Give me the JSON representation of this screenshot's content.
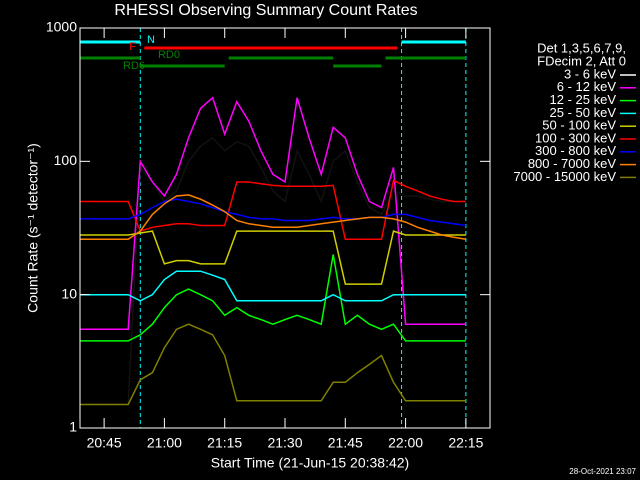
{
  "chart_data": {
    "type": "line",
    "title": "RHESSI Observing Summary Count Rates",
    "x_label": "Start Time (21-Jun-15 20:38:42)",
    "y_label": "Count Rate (s⁻¹ detector⁻¹)",
    "legend_title": [
      "Det 1,3,5,6,7,9,",
      "FDecim 2, Att 0"
    ],
    "timestamp": "28-Oct-2021 23:07",
    "log_y": true,
    "xlim": [
      "20:39",
      "22:21"
    ],
    "xticks": [
      "20:45",
      "21:00",
      "21:15",
      "21:30",
      "21:45",
      "22:00",
      "22:15"
    ],
    "ylim": [
      1,
      1000
    ],
    "yticks": [
      1,
      10,
      100,
      1000
    ],
    "markers": [
      "20:39",
      "20:54",
      "21:59",
      "22:15"
    ],
    "marker_color": "#00ffff",
    "flags": [
      {
        "label": "N",
        "color": "#00ffff",
        "spans": [
          [
            "20:39",
            "20:54"
          ],
          [
            "21:59",
            "22:15"
          ]
        ]
      },
      {
        "label": "F",
        "color": "#ff0000",
        "spans": [
          [
            "20:55",
            "21:58"
          ]
        ]
      },
      {
        "label": "RD0",
        "color": "#008000",
        "spans": [
          [
            "20:39",
            "20:54"
          ],
          [
            "21:16",
            "21:42"
          ],
          [
            "21:55",
            "22:15"
          ]
        ]
      },
      {
        "label": "RD6",
        "color": "#008000",
        "spans": [
          [
            "20:54",
            "21:15"
          ],
          [
            "21:42",
            "21:54"
          ]
        ]
      }
    ],
    "x": [
      "20:39",
      "20:42",
      "20:45",
      "20:48",
      "20:51",
      "20:54",
      "20:57",
      "21:00",
      "21:03",
      "21:06",
      "21:09",
      "21:12",
      "21:15",
      "21:18",
      "21:21",
      "21:24",
      "21:27",
      "21:30",
      "21:33",
      "21:36",
      "21:39",
      "21:42",
      "21:45",
      "21:48",
      "21:51",
      "21:54",
      "21:57",
      "22:00",
      "22:03",
      "22:06",
      "22:09",
      "22:12",
      "22:15"
    ],
    "series": [
      {
        "name": "3 - 6 keV",
        "color": "#000000",
        "values": [
          1.5,
          1.5,
          1.5,
          1.5,
          1.5,
          90,
          70,
          50,
          60,
          100,
          130,
          150,
          120,
          140,
          130,
          90,
          60,
          50,
          120,
          80,
          50,
          100,
          120,
          70,
          45,
          40,
          60,
          55,
          55,
          52,
          50,
          50,
          50
        ]
      },
      {
        "name": "6 - 12 keV",
        "color": "#ff00ff",
        "values": [
          5.5,
          5.5,
          5.5,
          5.5,
          5.5,
          100,
          70,
          55,
          80,
          150,
          250,
          300,
          160,
          280,
          200,
          120,
          80,
          70,
          300,
          150,
          80,
          180,
          150,
          80,
          50,
          45,
          90,
          6,
          6,
          6,
          6,
          6,
          6
        ]
      },
      {
        "name": "12 - 25 keV",
        "color": "#00ff00",
        "values": [
          4.5,
          4.5,
          4.5,
          4.5,
          4.5,
          5,
          6,
          8,
          10,
          11,
          10,
          9,
          7,
          8,
          7,
          6.5,
          6,
          6.5,
          7,
          6.5,
          6,
          20,
          6,
          7,
          6,
          5.5,
          6,
          4.5,
          4.5,
          4.5,
          4.5,
          4.5,
          4.5
        ]
      },
      {
        "name": "25 - 50 keV",
        "color": "#00ffff",
        "values": [
          10,
          10,
          10,
          10,
          10,
          9,
          10,
          13,
          15,
          15,
          15,
          14,
          13,
          9,
          9,
          9,
          9,
          9,
          9,
          9,
          9,
          10,
          9,
          9,
          9,
          9,
          10,
          10,
          10,
          10,
          10,
          10,
          10
        ]
      },
      {
        "name": "50 - 100 keV",
        "color": "#d0d000",
        "values": [
          28,
          28,
          28,
          28,
          28,
          29,
          30,
          17,
          18,
          18,
          17,
          17,
          17,
          30,
          30,
          30,
          30,
          30,
          30,
          30,
          30,
          30,
          12,
          12,
          12,
          12,
          30,
          28,
          28,
          28,
          28,
          28,
          28
        ]
      },
      {
        "name": "100 - 300 keV",
        "color": "#ff0000",
        "values": [
          50,
          50,
          50,
          50,
          50,
          30,
          32,
          33,
          34,
          34,
          33,
          33,
          33,
          70,
          70,
          68,
          66,
          65,
          65,
          65,
          65,
          66,
          26,
          26,
          26,
          26,
          72,
          65,
          60,
          55,
          52,
          50,
          50
        ]
      },
      {
        "name": "300 - 800 keV",
        "color": "#0000ff",
        "values": [
          37,
          37,
          37,
          37,
          37,
          40,
          45,
          50,
          52,
          50,
          48,
          45,
          42,
          40,
          38,
          37,
          37,
          36,
          36,
          36,
          37,
          38,
          37,
          37,
          38,
          38,
          40,
          40,
          38,
          36,
          35,
          34,
          33
        ]
      },
      {
        "name": "800 - 7000 keV",
        "color": "#ff8000",
        "values": [
          26,
          26,
          26,
          26,
          26,
          30,
          40,
          48,
          55,
          56,
          52,
          47,
          42,
          36,
          34,
          33,
          32,
          32,
          32,
          33,
          34,
          35,
          36,
          37,
          38,
          38,
          37,
          35,
          32,
          30,
          28,
          27,
          26
        ]
      },
      {
        "name": "7000 - 15000 keV",
        "color": "#808000",
        "values": [
          1.5,
          1.5,
          1.5,
          1.5,
          1.5,
          2.3,
          2.6,
          4,
          5.5,
          6,
          5.5,
          5,
          3.5,
          1.6,
          1.6,
          1.6,
          1.6,
          1.6,
          1.6,
          1.6,
          1.6,
          2.2,
          2.2,
          2.6,
          3,
          3.5,
          2.2,
          1.6,
          1.6,
          1.6,
          1.6,
          1.6,
          1.6
        ]
      }
    ]
  }
}
